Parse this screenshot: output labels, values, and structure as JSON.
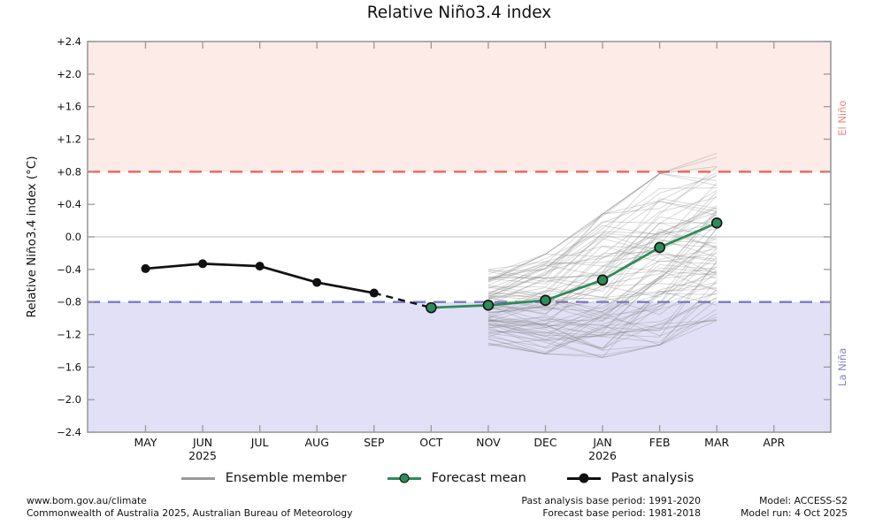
{
  "title": "Relative Niño3.4 index",
  "chart_data": {
    "type": "line",
    "title": "Relative Niño3.4 index",
    "xlabel": "",
    "ylabel": "Relative Niño3.4 index (°C)",
    "ylim": [
      -2.4,
      2.4
    ],
    "ytick_step": 0.4,
    "ytick_labels": [
      "+2.4",
      "+2.0",
      "+1.6",
      "+1.2",
      "+0.8",
      "+0.4",
      "0.0",
      "−0.4",
      "−0.8",
      "−1.2",
      "−1.6",
      "−2.0",
      "−2.4"
    ],
    "categories": [
      "MAY",
      "JUN",
      "JUL",
      "AUG",
      "SEP",
      "OCT",
      "NOV",
      "DEC",
      "JAN",
      "FEB",
      "MAR",
      "APR"
    ],
    "year_labels": [
      {
        "month": "JUN",
        "year": "2025"
      },
      {
        "month": "JAN",
        "year": "2026"
      }
    ],
    "grid": "zero-line-only",
    "zero_line_color": "#cccccc",
    "frame_color": "#9a9a9a",
    "thresholds": {
      "el_nino": {
        "value": 0.8,
        "label": "El Niño",
        "line_color": "#f2625c",
        "band_color": "#fcebe6",
        "label_color": "#e98980"
      },
      "la_nina": {
        "value": -0.8,
        "label": "La Niña",
        "line_color": "#7b79c4",
        "band_color": "#e2e0f6",
        "label_color": "#8583c6"
      }
    },
    "series": [
      {
        "name": "Past analysis",
        "color": "#111111",
        "style": "solid-markers",
        "x": [
          "MAY",
          "JUN",
          "JUL",
          "AUG",
          "SEP"
        ],
        "values": [
          -0.39,
          -0.33,
          -0.36,
          -0.56,
          -0.69
        ]
      },
      {
        "name": "Past analysis provisional",
        "color": "#111111",
        "style": "dashed",
        "x": [
          "SEP",
          "OCT"
        ],
        "values": [
          -0.69,
          -0.87
        ]
      },
      {
        "name": "Forecast mean",
        "color": "#2e8b57",
        "style": "solid-markers-edged",
        "x": [
          "OCT",
          "NOV",
          "DEC",
          "JAN",
          "FEB",
          "MAR"
        ],
        "values": [
          -0.87,
          -0.84,
          -0.78,
          -0.53,
          -0.13,
          0.17
        ]
      }
    ],
    "ensemble": {
      "name": "Ensemble member",
      "color": "#808080",
      "opacity": 0.3,
      "count": 85,
      "x": [
        "NOV",
        "DEC",
        "JAN",
        "FEB",
        "MAR"
      ],
      "mean": [
        -0.84,
        -0.78,
        -0.53,
        -0.13,
        0.17
      ],
      "envelope_min": [
        -1.35,
        -1.45,
        -1.5,
        -1.35,
        -1.05
      ],
      "envelope_max": [
        -0.4,
        -0.2,
        0.3,
        0.8,
        1.05
      ]
    },
    "legend": [
      {
        "label": "Ensemble member",
        "swatch": "gray-line"
      },
      {
        "label": "Forecast mean",
        "swatch": "green-line-marker"
      },
      {
        "label": "Past analysis",
        "swatch": "black-line-marker"
      }
    ],
    "legend_position": "bottom-center"
  },
  "footer": {
    "left_line1": "www.bom.gov.au/climate",
    "left_line2": "Commonwealth of Australia 2025, Australian Bureau of Meteorology",
    "mid_line1": "Past analysis base period: 1991-2020",
    "mid_line2": "Forecast base period: 1981-2018",
    "right_line1": "Model: ACCESS-S2",
    "right_line2": "Model run: 4 Oct 2025"
  }
}
